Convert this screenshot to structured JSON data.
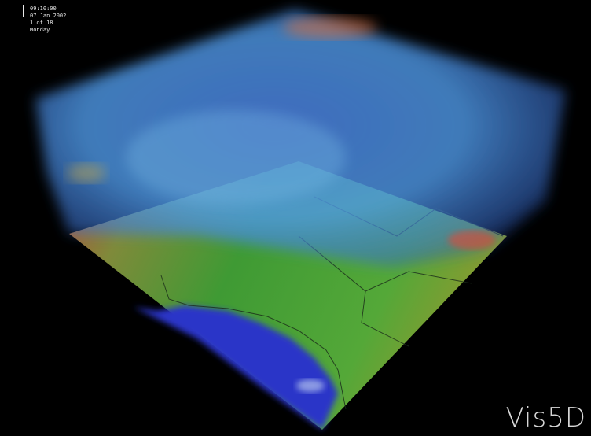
{
  "overlay": {
    "time": "09:10:00",
    "date": "07 Jan 2002",
    "step": "1 of 18",
    "weekday": "Monday"
  },
  "logo": "Vis5D"
}
